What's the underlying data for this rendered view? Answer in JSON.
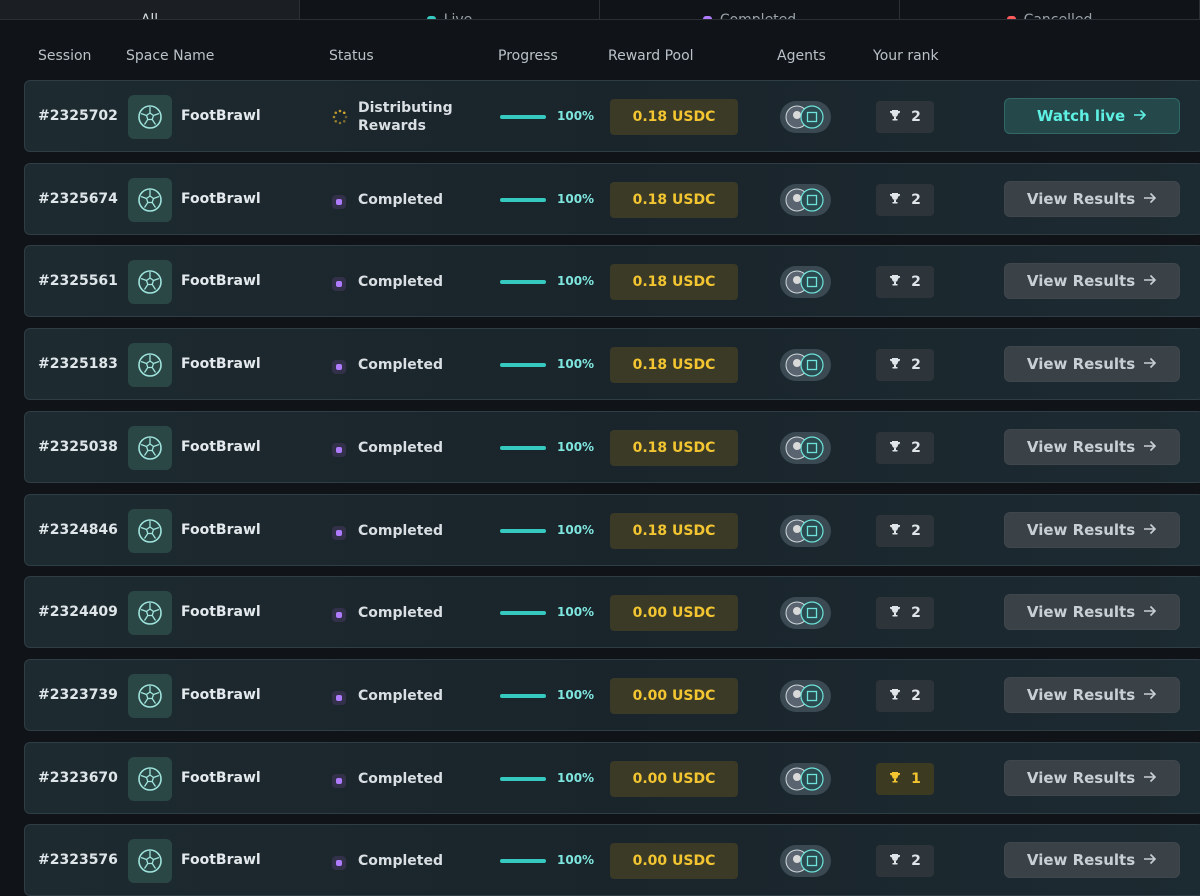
{
  "tabs": [
    "All",
    "Live",
    "Completed",
    "Cancelled"
  ],
  "headers": [
    "Session",
    "Space Name",
    "Status",
    "Progress",
    "Reward Pool",
    "Agents",
    "Your rank"
  ],
  "rows": [
    {
      "session": "#2325702",
      "space": "FootBrawl",
      "status": "Distributing Rewards",
      "progress": "100%",
      "reward": "0.18 USDC",
      "rank": "2",
      "action": "Watch live"
    },
    {
      "session": "#2325674",
      "space": "FootBrawl",
      "status": "Completed",
      "progress": "100%",
      "reward": "0.18 USDC",
      "rank": "2",
      "action": "View Results"
    },
    {
      "session": "#2325561",
      "space": "FootBrawl",
      "status": "Completed",
      "progress": "100%",
      "reward": "0.18 USDC",
      "rank": "2",
      "action": "View Results"
    },
    {
      "session": "#2325183",
      "space": "FootBrawl",
      "status": "Completed",
      "progress": "100%",
      "reward": "0.18 USDC",
      "rank": "2",
      "action": "View Results"
    },
    {
      "session": "#2325038",
      "space": "FootBrawl",
      "status": "Completed",
      "progress": "100%",
      "reward": "0.18 USDC",
      "rank": "2",
      "action": "View Results"
    },
    {
      "session": "#2324846",
      "space": "FootBrawl",
      "status": "Completed",
      "progress": "100%",
      "reward": "0.18 USDC",
      "rank": "2",
      "action": "View Results"
    },
    {
      "session": "#2324409",
      "space": "FootBrawl",
      "status": "Completed",
      "progress": "100%",
      "reward": "0.00 USDC",
      "rank": "2",
      "action": "View Results"
    },
    {
      "session": "#2323739",
      "space": "FootBrawl",
      "status": "Completed",
      "progress": "100%",
      "reward": "0.00 USDC",
      "rank": "2",
      "action": "View Results"
    },
    {
      "session": "#2323670",
      "space": "FootBrawl",
      "status": "Completed",
      "progress": "100%",
      "reward": "0.00 USDC",
      "rank": "1",
      "action": "View Results"
    },
    {
      "session": "#2323576",
      "space": "FootBrawl",
      "status": "Completed",
      "progress": "100%",
      "reward": "0.00 USDC",
      "rank": "2",
      "action": "View Results"
    }
  ]
}
